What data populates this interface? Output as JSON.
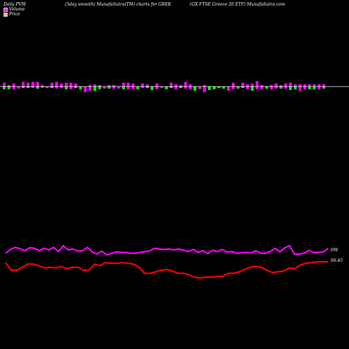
{
  "header": {
    "left": "Daily PVM",
    "middle": "(5day smooth) MunafaSutra(TM) charts for GREK",
    "right": "(GX  FTSE Greece  20  ETF) MunafaSutra.com"
  },
  "legend": [
    {
      "label": "Volume",
      "color": "#ff00ff"
    },
    {
      "label": "Price",
      "color": "#ffb080"
    }
  ],
  "colors": {
    "up_bar": "#ff00ff",
    "down_bar": "#00ff00",
    "volume_line": "#ff00ff",
    "price_line": "#ff0000",
    "baseline": "#ffffff"
  },
  "chart_data": {
    "type": "line",
    "series": [
      {
        "name": "Volume",
        "values": [
          62,
          71,
          76,
          73,
          68,
          75,
          74,
          68,
          74,
          70,
          76,
          66,
          80,
          70,
          72,
          67,
          68,
          76,
          65,
          60,
          67,
          58,
          62,
          65,
          64,
          64,
          62,
          62,
          64,
          66,
          68,
          74,
          72,
          71,
          72,
          70,
          72,
          69,
          66,
          71,
          64,
          68,
          61,
          69,
          66,
          71,
          65,
          66,
          62,
          63,
          64,
          63,
          68,
          62,
          62,
          66,
          74,
          65,
          75,
          80,
          60,
          60,
          62,
          69,
          64,
          64,
          65,
          73
        ],
        "labels": [
          "",
          "",
          "",
          "",
          "",
          "",
          "",
          "",
          "",
          "",
          "",
          "",
          "",
          "",
          "",
          "",
          "",
          "",
          "",
          "",
          "",
          "",
          "",
          "",
          "",
          "",
          "",
          "",
          "",
          "",
          "",
          "",
          "",
          "",
          "",
          "",
          "",
          "",
          "",
          "",
          "",
          "",
          "",
          "",
          "",
          "",
          "",
          "",
          "",
          "",
          "",
          "",
          "",
          "",
          "",
          "",
          "",
          "",
          "",
          "",
          "",
          "",
          "",
          "",
          "",
          "",
          "",
          "0M"
        ]
      },
      {
        "name": "Price",
        "values": [
          64.0,
          63.0,
          63.0,
          63.4,
          63.8,
          63.8,
          63.6,
          63.3,
          63.4,
          63.3,
          63.5,
          63.2,
          63.4,
          63.4,
          63.0,
          63.0,
          63.8,
          63.6,
          64.0,
          63.9,
          63.9,
          64.0,
          63.9,
          63.8,
          63.4,
          62.6,
          62.6,
          62.8,
          63.0,
          63.1,
          62.9,
          62.6,
          62.6,
          62.4,
          62.1,
          62.0,
          62.1,
          62.1,
          62.2,
          62.2,
          62.6,
          62.6,
          62.8,
          63.1,
          63.4,
          63.5,
          63.4,
          63.0,
          62.7,
          62.8,
          62.9,
          63.3,
          63.2,
          63.7,
          63.9,
          64.0,
          64.1,
          64.1,
          64.1
        ],
        "last_label": "66.45"
      }
    ],
    "pvm_bars": {
      "up_heights": [
        5,
        2,
        4,
        0,
        6,
        5,
        6,
        6,
        2,
        0,
        5,
        6,
        4,
        5,
        5,
        4,
        0,
        0,
        2,
        3,
        2,
        0,
        2,
        2,
        0,
        5,
        5,
        4,
        0,
        4,
        3,
        0,
        4,
        0,
        0,
        5,
        3,
        2,
        6,
        3,
        0,
        0,
        2,
        0,
        0,
        0,
        0,
        0,
        5,
        0,
        5,
        3,
        4,
        7,
        2,
        0,
        2,
        4,
        2,
        4,
        5,
        3,
        3,
        3,
        3,
        3,
        3,
        3
      ],
      "down_heights": [
        4,
        4,
        4,
        3,
        2,
        2,
        2,
        3,
        2,
        2,
        2,
        3,
        2,
        4,
        4,
        2,
        4,
        8,
        6,
        6,
        4,
        3,
        3,
        3,
        3,
        4,
        4,
        4,
        4,
        2,
        2,
        5,
        4,
        2,
        4,
        2,
        4,
        2,
        3,
        4,
        6,
        4,
        8,
        5,
        4,
        2,
        3,
        6,
        4,
        3,
        2,
        4,
        6,
        4,
        4,
        3,
        4,
        3,
        3,
        3,
        5,
        4,
        6,
        4,
        4,
        4,
        4,
        3
      ]
    }
  }
}
